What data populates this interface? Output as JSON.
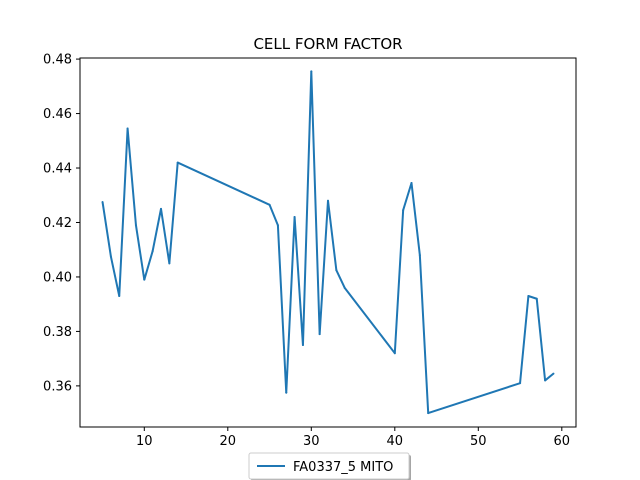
{
  "chart_data": {
    "type": "line",
    "title": "CELL FORM FACTOR",
    "xlabel": "",
    "ylabel": "",
    "xlim": [
      2.3,
      61.7
    ],
    "ylim": [
      0.3449,
      0.4804
    ],
    "xticks": [
      10,
      20,
      30,
      40,
      50,
      60
    ],
    "yticks": [
      0.36,
      0.38,
      0.4,
      0.42,
      0.44,
      0.46,
      0.48
    ],
    "ytick_labels": [
      "0.36",
      "0.38",
      "0.40",
      "0.42",
      "0.44",
      "0.46",
      "0.48"
    ],
    "grid": false,
    "legend_position": "bottom-center",
    "series": [
      {
        "name": "FA0337_5 MITO",
        "color": "#1f77b4",
        "x": [
          5,
          6,
          7,
          8,
          9,
          10,
          11,
          12,
          13,
          14,
          25,
          26,
          27,
          28,
          29,
          30,
          31,
          32,
          33,
          34,
          40,
          41,
          42,
          43,
          44,
          55,
          56,
          57,
          58,
          59
        ],
        "y": [
          0.4275,
          0.4075,
          0.393,
          0.4545,
          0.419,
          0.399,
          0.4095,
          0.425,
          0.405,
          0.442,
          0.4265,
          0.419,
          0.3575,
          0.422,
          0.375,
          0.4755,
          0.379,
          0.428,
          0.4025,
          0.396,
          0.372,
          0.4245,
          0.4345,
          0.408,
          0.35,
          0.361,
          0.393,
          0.392,
          0.362,
          0.3645
        ]
      }
    ]
  }
}
